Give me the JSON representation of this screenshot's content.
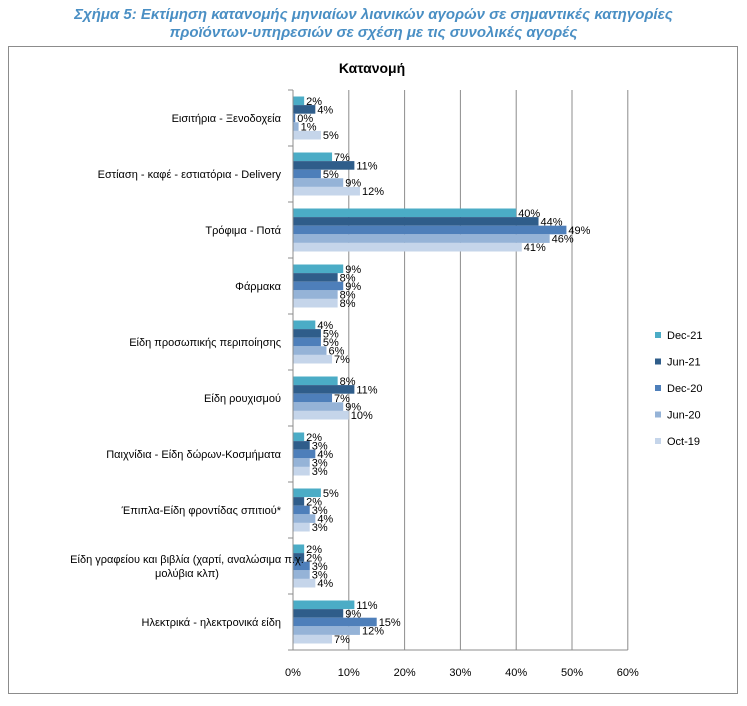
{
  "figure": {
    "title_line1": "Σχήμα 5: Εκτίμηση κατανομής μηνιαίων λιανικών αγορών σε σημαντικές κατηγορίες",
    "title_line2": "προϊόντων-υπηρεσιών σε σχέση με τις συνολικές αγορές"
  },
  "colors": {
    "title": "#4a8fc4",
    "series": [
      "#4bacc6",
      "#2f5d8a",
      "#4e7fba",
      "#95b3d7",
      "#c5d5ea"
    ],
    "grid": "#8c8c8c",
    "text": "#000000"
  },
  "chart_data": {
    "type": "bar",
    "orientation": "horizontal",
    "title": "Κατανομή",
    "categories": [
      "Εισιτήρια  - Ξενοδοχεία",
      "Εστίαση - καφέ - εστιατόρια  - Delivery",
      "Τρόφιμα - Ποτά",
      "Φάρμακα",
      "Είδη προσωπικής περιποίησης",
      "Είδη ρουχισμού",
      "Παιχνίδια  - Είδη δώρων-Κοσμήματα",
      "Έπιπλα-Είδη φροντίδας σπιτιού*",
      "Είδη γραφείου και βιβλία  (χαρτί, αναλώσιμα π.χ. μολύβια κλπ)",
      "Ηλεκτρικά - ηλεκτρονικά είδη"
    ],
    "category_lines": [
      [
        "Εισιτήρια  - Ξενοδοχεία"
      ],
      [
        "Εστίαση - καφέ - εστιατόρια  - Delivery"
      ],
      [
        "Τρόφιμα - Ποτά"
      ],
      [
        "Φάρμακα"
      ],
      [
        "Είδη προσωπικής περιποίησης"
      ],
      [
        "Είδη ρουχισμού"
      ],
      [
        "Παιχνίδια  - Είδη δώρων-Κοσμήματα"
      ],
      [
        "Έπιπλα-Είδη φροντίδας σπιτιού*"
      ],
      [
        "Είδη γραφείου και βιβλία  (χαρτί, αναλώσιμα π.χ.",
        "μολύβια κλπ)"
      ],
      [
        "Ηλεκτρικά - ηλεκτρονικά είδη"
      ]
    ],
    "series": [
      {
        "name": "Dec-21",
        "values": [
          2,
          7,
          40,
          9,
          4,
          8,
          2,
          5,
          2,
          11
        ],
        "labels": [
          "2%",
          "7%",
          "40%",
          "9%",
          "4%",
          "8%",
          "2%",
          "5%",
          "2%",
          "11%"
        ]
      },
      {
        "name": "Jun-21",
        "values": [
          4,
          11,
          44,
          8,
          5,
          11,
          3,
          2,
          2,
          9
        ],
        "labels": [
          "4%",
          "11%",
          "44%",
          "8%",
          "5%",
          "11%",
          "3%",
          "2%",
          "2%",
          "9%"
        ]
      },
      {
        "name": "Dec-20",
        "values": [
          0.4,
          5,
          49,
          9,
          5,
          7,
          4,
          3,
          3,
          15
        ],
        "labels": [
          "0%",
          "5%",
          "49%",
          "9%",
          "5%",
          "7%",
          "4%",
          "3%",
          "3%",
          "15%"
        ]
      },
      {
        "name": "Jun-20",
        "values": [
          1,
          9,
          46,
          8,
          6,
          9,
          3,
          4,
          3,
          12
        ],
        "labels": [
          "1%",
          "9%",
          "46%",
          "8%",
          "6%",
          "9%",
          "3%",
          "4%",
          "3%",
          "12%"
        ]
      },
      {
        "name": "Oct-19",
        "values": [
          5,
          12,
          41,
          8,
          7,
          10,
          3,
          3,
          4,
          7
        ],
        "labels": [
          "5%",
          "12%",
          "41%",
          "8%",
          "7%",
          "10%",
          "3%",
          "3%",
          "4%",
          "7%"
        ]
      }
    ],
    "x_ticks": [
      "0%",
      "10%",
      "20%",
      "30%",
      "40%",
      "50%",
      "60%"
    ],
    "xlim": [
      0,
      60
    ],
    "grid": true,
    "legend_position": "right"
  }
}
